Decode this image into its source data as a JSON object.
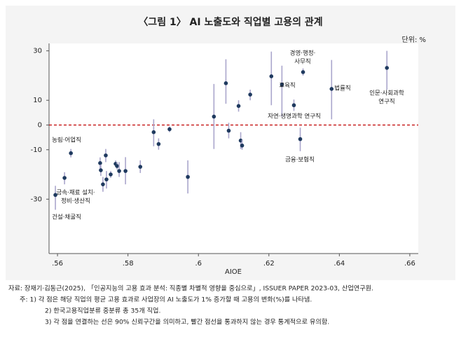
{
  "chart_data": {
    "type": "scatter",
    "title": "〈그림 1〉 AI 노출도와 직업별 고용의 관계",
    "unit_label": "단위: %",
    "x_label": "AIOE",
    "x": [
      0.5594,
      0.562,
      0.5638,
      0.5721,
      0.5723,
      0.5729,
      0.5737,
      0.5739,
      0.5751,
      0.5765,
      0.5769,
      0.5775,
      0.5793,
      0.5835,
      0.5873,
      0.5887,
      0.5918,
      0.597,
      0.6044,
      0.6078,
      0.6086,
      0.6114,
      0.612,
      0.6124,
      0.6147,
      0.6207,
      0.6237,
      0.6271,
      0.6289,
      0.6297,
      0.6378,
      0.6535
    ],
    "values": [
      -28.3,
      -21.4,
      -11.4,
      -15.4,
      -18.3,
      -24,
      -12.3,
      -22,
      -20,
      -15.7,
      -16.6,
      -18.6,
      -18.6,
      -16.9,
      -2.9,
      -7.7,
      -1.7,
      -21,
      3.4,
      16.9,
      -2.3,
      7.7,
      -6.3,
      -8.3,
      12.3,
      19.7,
      16.3,
      8,
      -5.7,
      21.4,
      14.6,
      23.1
    ],
    "ci_low": [
      -34.3,
      -24,
      -13.1,
      -17.7,
      -20.6,
      -27,
      -15,
      -25.7,
      -21.4,
      -17,
      -18,
      -21,
      -24,
      -19.4,
      -8.6,
      -10,
      -2.9,
      -27.7,
      -9.7,
      8.6,
      -5.4,
      5.4,
      -9.7,
      -10,
      10,
      8,
      3.4,
      5.7,
      -10.6,
      20,
      2.3,
      14.3
    ],
    "ci_high": [
      -24.6,
      -19.1,
      -9.7,
      -13.1,
      -16,
      -21,
      -9.7,
      -18.6,
      -18.6,
      -14.3,
      -15,
      -15,
      -13,
      -14.3,
      2.3,
      -5.4,
      -0.6,
      -14.3,
      16.6,
      26.6,
      0.9,
      10,
      -2.9,
      -6,
      14.3,
      29.7,
      24,
      10.3,
      -1.1,
      22.9,
      26.3,
      30
    ],
    "point_color": "#1f3a5f",
    "ci_color": "#aaa6cc",
    "hline": {
      "y": 0,
      "color": "#c00000",
      "style": "dashed"
    },
    "annotations": [
      [
        "농림·어업직"
      ],
      [
        "금속·재료 설치·",
        "정비·생산직"
      ],
      [
        "건설·채굴직"
      ],
      [
        "경영·행정·",
        "사무직"
      ],
      [
        "교육직"
      ],
      [
        "법률직"
      ],
      [
        "인문·사회과학",
        "연구직"
      ],
      [
        "자연·생명과학 연구직"
      ],
      [
        "금융·보험직"
      ]
    ],
    "xlim": [
      0.5576,
      0.6624
    ],
    "ylim": [
      -52,
      33
    ],
    "xticks": [
      {
        "value": 0.56,
        "label": ".56"
      },
      {
        "value": 0.58,
        "label": ".58"
      },
      {
        "value": 0.6,
        "label": ".6"
      },
      {
        "value": 0.62,
        "label": ".62"
      },
      {
        "value": 0.64,
        "label": ".64"
      },
      {
        "value": 0.66,
        "label": ".66"
      }
    ],
    "yticks": [
      30,
      10,
      0,
      -10,
      -30
    ],
    "notes": [
      "자료: 장재기·김동근(2025), 「인공지능의 고용 효과 분석: 직종별 차별적 영향을 중심으로」, ISSUER PAPER 2023-03, 산업연구원.",
      "주: 1) 각 점은 해당 직업의 평균 고용 효과로 사업장의 AI 노출도가 1% 증가할 때 고용의 변화(%)를 나타냄.",
      "2) 한국고용직업분류 중분류 총 35개 직업.",
      "3) 각 점을 연결하는 선은 90% 신뢰구간을 의미하고, 빨간 점선을 통과하지 않는 경우 통계적으로 유의함."
    ]
  }
}
